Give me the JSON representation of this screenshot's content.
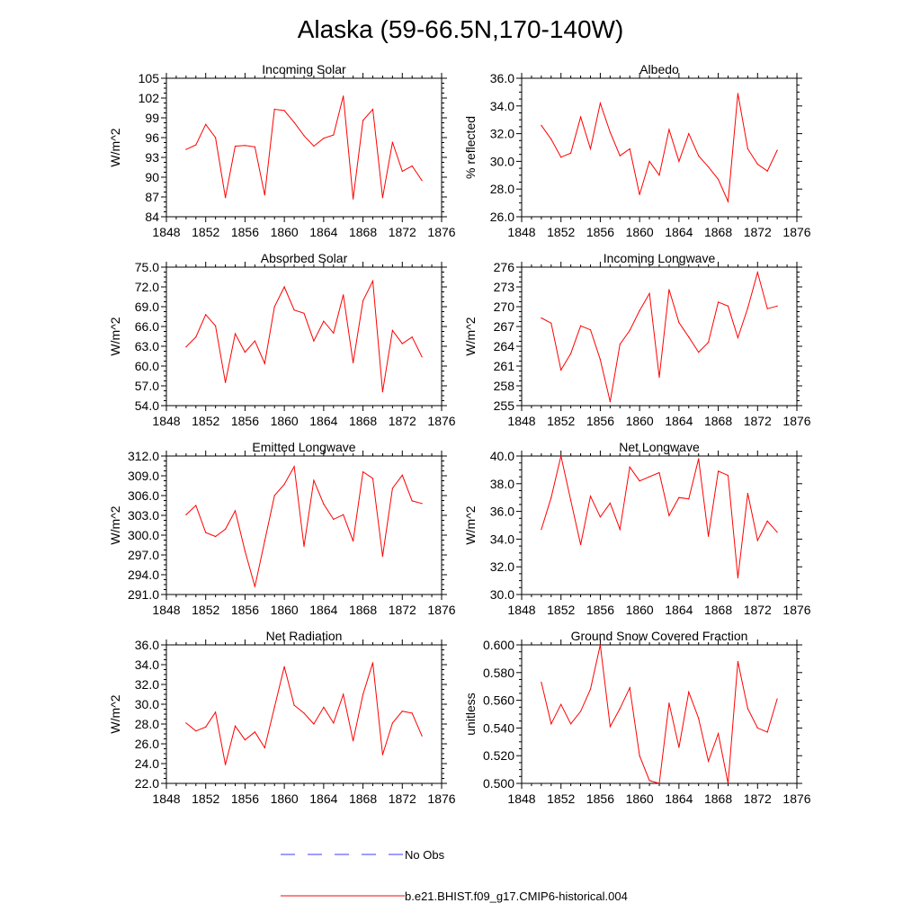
{
  "figure": {
    "title": "Alaska (59-66.5N,170-140W)",
    "line_color": "#ff0000",
    "obs_line_color": "#3b3bff"
  },
  "legend": {
    "entries": [
      {
        "label": "No Obs",
        "style": "dashed",
        "color": "#3b3bff"
      },
      {
        "label": "b.e21.BHIST.f09_g17.CMIP6-historical.004",
        "style": "solid",
        "color": "#ff0000"
      }
    ]
  },
  "chart_data": [
    {
      "type": "line",
      "title": "Incoming Solar",
      "ylabel": "W/m^2",
      "xlim": [
        1848,
        1876
      ],
      "xticks": [
        1848,
        1852,
        1856,
        1860,
        1864,
        1868,
        1872,
        1876
      ],
      "ylim": [
        84,
        105
      ],
      "yticks": [
        "84",
        "87",
        "90",
        "93",
        "96",
        "99",
        "102",
        "105"
      ],
      "x": [
        1850,
        1851,
        1852,
        1853,
        1854,
        1855,
        1856,
        1857,
        1858,
        1859,
        1860,
        1861,
        1862,
        1863,
        1864,
        1865,
        1866,
        1867,
        1868,
        1869,
        1870,
        1871,
        1872,
        1873,
        1874
      ],
      "values": [
        94.2,
        94.9,
        98.0,
        96.0,
        86.9,
        94.7,
        94.8,
        94.6,
        87.3,
        100.3,
        100.1,
        98.3,
        96.3,
        94.7,
        95.9,
        96.4,
        102.3,
        86.7,
        98.6,
        100.3,
        86.9,
        95.3,
        90.9,
        91.7,
        89.5
      ]
    },
    {
      "type": "line",
      "title": "Albedo",
      "ylabel": "% reflected",
      "xlim": [
        1848,
        1876
      ],
      "xticks": [
        1848,
        1852,
        1856,
        1860,
        1864,
        1868,
        1872,
        1876
      ],
      "ylim": [
        26,
        36
      ],
      "yticks": [
        "26.0",
        "28.0",
        "30.0",
        "32.0",
        "34.0",
        "36.0"
      ],
      "x": [
        1850,
        1851,
        1852,
        1853,
        1854,
        1855,
        1856,
        1857,
        1858,
        1859,
        1860,
        1861,
        1862,
        1863,
        1864,
        1865,
        1866,
        1867,
        1868,
        1869,
        1870,
        1871,
        1872,
        1873,
        1874
      ],
      "values": [
        32.6,
        31.6,
        30.3,
        30.6,
        33.2,
        30.9,
        34.2,
        32.1,
        30.4,
        30.9,
        27.6,
        30.0,
        29.0,
        32.3,
        30.0,
        32.0,
        30.4,
        29.6,
        28.7,
        27.1,
        34.9,
        30.9,
        29.8,
        29.3,
        30.8
      ]
    },
    {
      "type": "line",
      "title": "Absorbed Solar",
      "ylabel": "W/m^2",
      "xlim": [
        1848,
        1876
      ],
      "xticks": [
        1848,
        1852,
        1856,
        1860,
        1864,
        1868,
        1872,
        1876
      ],
      "ylim": [
        54,
        75
      ],
      "yticks": [
        "54.0",
        "57.0",
        "60.0",
        "63.0",
        "66.0",
        "69.0",
        "72.0",
        "75.0"
      ],
      "x": [
        1850,
        1851,
        1852,
        1853,
        1854,
        1855,
        1856,
        1857,
        1858,
        1859,
        1860,
        1861,
        1862,
        1863,
        1864,
        1865,
        1866,
        1867,
        1868,
        1869,
        1870,
        1871,
        1872,
        1873,
        1874
      ],
      "values": [
        62.9,
        64.4,
        67.8,
        66.1,
        57.5,
        64.9,
        62.1,
        63.8,
        60.4,
        69.0,
        72.0,
        68.5,
        68.0,
        63.8,
        66.8,
        65.0,
        70.8,
        60.5,
        69.9,
        72.9,
        56.1,
        65.4,
        63.4,
        64.4,
        61.4
      ]
    },
    {
      "type": "line",
      "title": "Incoming Longwave",
      "ylabel": "W/m^2",
      "xlim": [
        1848,
        1876
      ],
      "xticks": [
        1848,
        1852,
        1856,
        1860,
        1864,
        1868,
        1872,
        1876
      ],
      "ylim": [
        255,
        276
      ],
      "yticks": [
        "255",
        "258",
        "261",
        "264",
        "267",
        "270",
        "273",
        "276"
      ],
      "x": [
        1850,
        1851,
        1852,
        1853,
        1854,
        1855,
        1856,
        1857,
        1858,
        1859,
        1860,
        1861,
        1862,
        1863,
        1864,
        1865,
        1866,
        1867,
        1868,
        1869,
        1870,
        1871,
        1872,
        1873,
        1874
      ],
      "values": [
        268.3,
        267.5,
        260.4,
        262.9,
        267.1,
        266.5,
        262.0,
        255.6,
        264.3,
        266.4,
        269.4,
        272.0,
        259.3,
        272.6,
        267.6,
        265.4,
        263.1,
        264.6,
        270.7,
        270.1,
        265.3,
        269.8,
        275.2,
        269.7,
        270.1
      ]
    },
    {
      "type": "line",
      "title": "Emitted Longwave",
      "ylabel": "W/m^2",
      "xlim": [
        1848,
        1876
      ],
      "xticks": [
        1848,
        1852,
        1856,
        1860,
        1864,
        1868,
        1872,
        1876
      ],
      "ylim": [
        291,
        312
      ],
      "yticks": [
        "291.0",
        "294.0",
        "297.0",
        "300.0",
        "303.0",
        "306.0",
        "309.0",
        "312.0"
      ],
      "x": [
        1850,
        1851,
        1852,
        1853,
        1854,
        1855,
        1856,
        1857,
        1858,
        1859,
        1860,
        1861,
        1862,
        1863,
        1864,
        1865,
        1866,
        1867,
        1868,
        1869,
        1870,
        1871,
        1872,
        1873,
        1874
      ],
      "values": [
        303.1,
        304.5,
        300.4,
        299.8,
        300.9,
        303.7,
        297.6,
        292.2,
        299.1,
        306.0,
        307.7,
        310.4,
        298.3,
        308.3,
        304.7,
        302.4,
        303.1,
        299.1,
        309.6,
        308.6,
        296.8,
        307.1,
        309.1,
        305.2,
        304.8
      ]
    },
    {
      "type": "line",
      "title": "Net Longwave",
      "ylabel": "W/m^2",
      "xlim": [
        1848,
        1876
      ],
      "xticks": [
        1848,
        1852,
        1856,
        1860,
        1864,
        1868,
        1872,
        1876
      ],
      "ylim": [
        30,
        40
      ],
      "yticks": [
        "30.0",
        "32.0",
        "34.0",
        "36.0",
        "38.0",
        "40.0"
      ],
      "x": [
        1850,
        1851,
        1852,
        1853,
        1854,
        1855,
        1856,
        1857,
        1858,
        1859,
        1860,
        1861,
        1862,
        1863,
        1864,
        1865,
        1866,
        1867,
        1868,
        1869,
        1870,
        1871,
        1872,
        1873,
        1874
      ],
      "values": [
        34.7,
        37.0,
        40.0,
        36.8,
        33.6,
        37.1,
        35.6,
        36.6,
        34.7,
        39.2,
        38.2,
        38.5,
        38.8,
        35.7,
        37.0,
        36.9,
        39.8,
        34.2,
        38.9,
        38.6,
        31.2,
        37.3,
        33.9,
        35.3,
        34.5
      ]
    },
    {
      "type": "line",
      "title": "Net Radiation",
      "ylabel": "W/m^2",
      "xlim": [
        1848,
        1876
      ],
      "xticks": [
        1848,
        1852,
        1856,
        1860,
        1864,
        1868,
        1872,
        1876
      ],
      "ylim": [
        22,
        36
      ],
      "yticks": [
        "22.0",
        "24.0",
        "26.0",
        "28.0",
        "30.0",
        "32.0",
        "34.0",
        "36.0"
      ],
      "x": [
        1850,
        1851,
        1852,
        1853,
        1854,
        1855,
        1856,
        1857,
        1858,
        1859,
        1860,
        1861,
        1862,
        1863,
        1864,
        1865,
        1866,
        1867,
        1868,
        1869,
        1870,
        1871,
        1872,
        1873,
        1874
      ],
      "values": [
        28.1,
        27.3,
        27.7,
        29.2,
        23.9,
        27.8,
        26.4,
        27.2,
        25.6,
        29.7,
        33.8,
        29.9,
        29.1,
        28.0,
        29.7,
        28.1,
        31.0,
        26.3,
        31.0,
        34.2,
        24.9,
        28.1,
        29.3,
        29.1,
        26.8
      ]
    },
    {
      "type": "line",
      "title": "Ground Snow Covered Fraction",
      "ylabel": "unitless",
      "xlim": [
        1848,
        1876
      ],
      "xticks": [
        1848,
        1852,
        1856,
        1860,
        1864,
        1868,
        1872,
        1876
      ],
      "ylim": [
        0.5,
        0.6
      ],
      "yticks": [
        "0.500",
        "0.520",
        "0.540",
        "0.560",
        "0.580",
        "0.600"
      ],
      "x": [
        1850,
        1851,
        1852,
        1853,
        1854,
        1855,
        1856,
        1857,
        1858,
        1859,
        1860,
        1861,
        1862,
        1863,
        1864,
        1865,
        1866,
        1867,
        1868,
        1869,
        1870,
        1871,
        1872,
        1873,
        1874
      ],
      "values": [
        0.573,
        0.543,
        0.557,
        0.543,
        0.552,
        0.568,
        0.6,
        0.541,
        0.554,
        0.569,
        0.52,
        0.502,
        0.5,
        0.558,
        0.526,
        0.566,
        0.547,
        0.516,
        0.536,
        0.5,
        0.588,
        0.554,
        0.54,
        0.537,
        0.561
      ]
    }
  ]
}
